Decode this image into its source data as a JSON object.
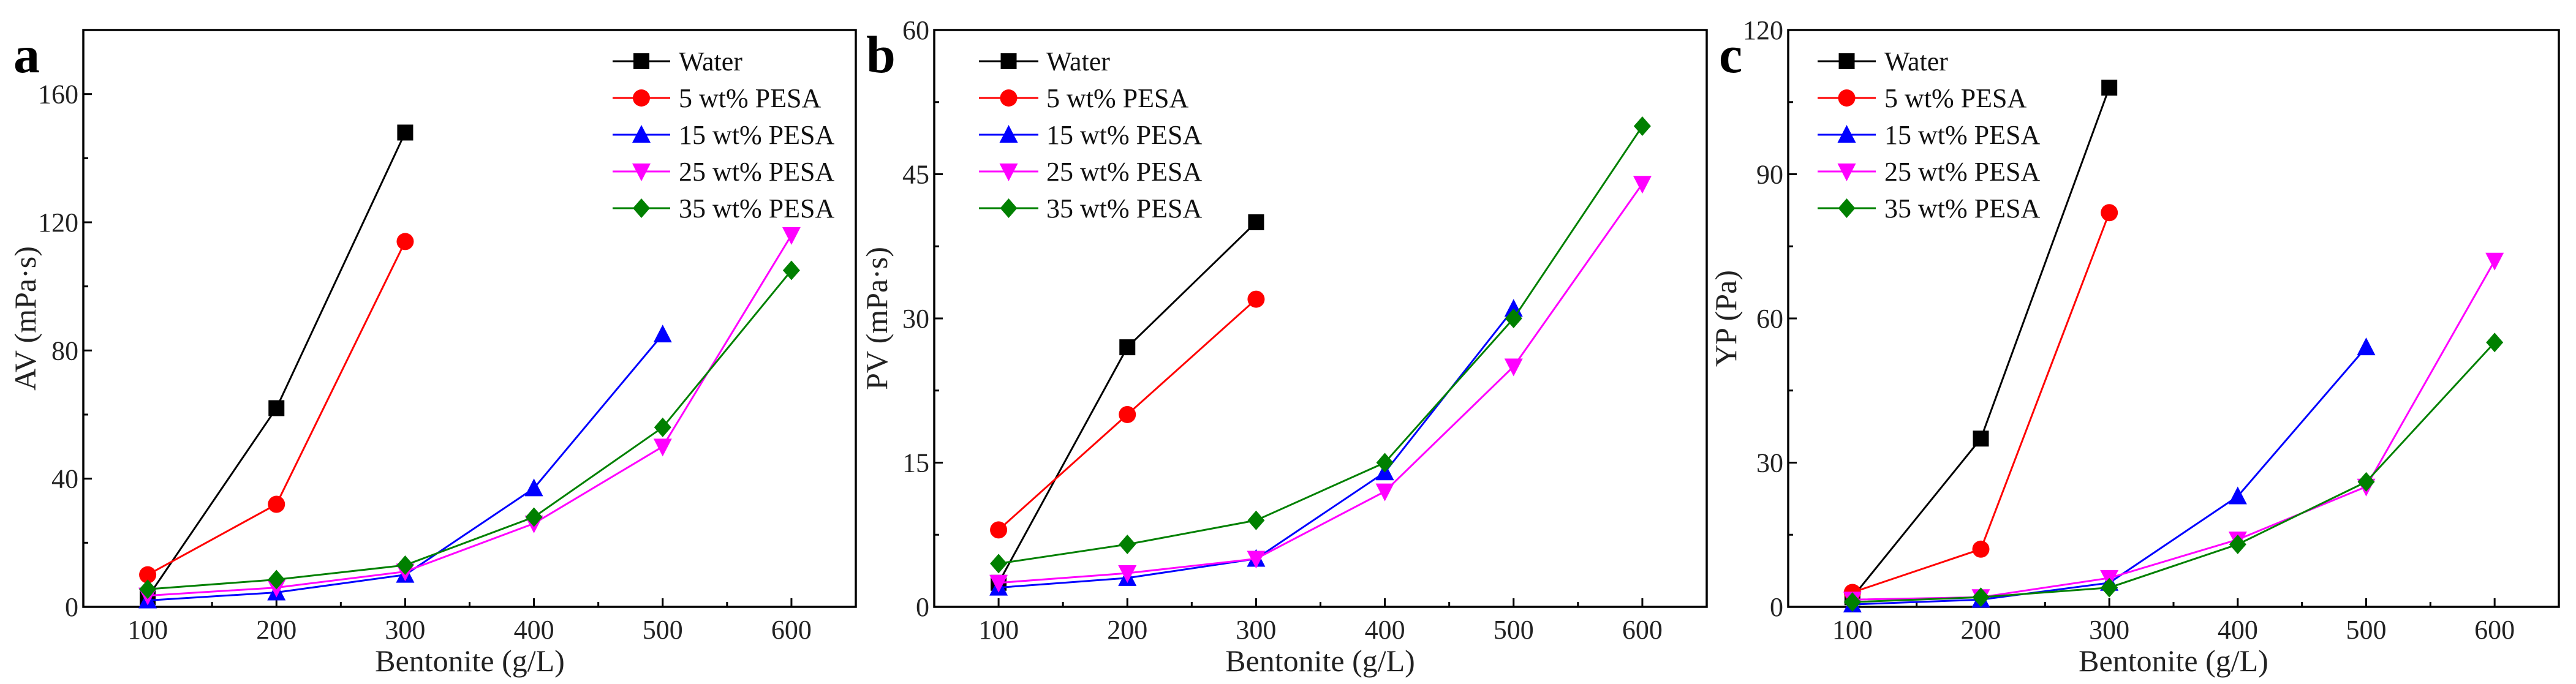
{
  "chart_data": [
    {
      "type": "line",
      "panel_label": "a",
      "xlabel": "Bentonite (g/L)",
      "ylabel": "AV (mPa·s)",
      "xlim": [
        50,
        650
      ],
      "ylim": [
        0,
        180
      ],
      "xticks": [
        100,
        200,
        300,
        400,
        500,
        600
      ],
      "yticks": [
        0,
        40,
        80,
        120,
        160
      ],
      "legend_position": "top-right",
      "series": [
        {
          "name": "Water",
          "color": "#000000",
          "marker": "square",
          "x": [
            100,
            200,
            300
          ],
          "y": [
            3,
            62,
            148
          ]
        },
        {
          "name": "5 wt% PESA",
          "color": "#ff0000",
          "marker": "circle",
          "x": [
            100,
            200,
            300
          ],
          "y": [
            10,
            32,
            114
          ]
        },
        {
          "name": "15 wt% PESA",
          "color": "#0000ff",
          "marker": "triangle-up",
          "x": [
            100,
            200,
            300,
            400,
            500
          ],
          "y": [
            2,
            4.5,
            10,
            37,
            85
          ]
        },
        {
          "name": "25 wt% PESA",
          "color": "#ff00ff",
          "marker": "triangle-down",
          "x": [
            100,
            200,
            300,
            400,
            500,
            600
          ],
          "y": [
            3.5,
            6,
            11,
            26,
            50,
            116
          ]
        },
        {
          "name": "35 wt% PESA",
          "color": "#008000",
          "marker": "diamond",
          "x": [
            100,
            200,
            300,
            400,
            500,
            600
          ],
          "y": [
            5.5,
            8.5,
            13,
            28,
            56,
            105
          ]
        }
      ]
    },
    {
      "type": "line",
      "panel_label": "b",
      "xlabel": "Bentonite (g/L)",
      "ylabel": "PV (mPa·s)",
      "xlim": [
        50,
        650
      ],
      "ylim": [
        0,
        60
      ],
      "xticks": [
        100,
        200,
        300,
        400,
        500,
        600
      ],
      "yticks": [
        0,
        15,
        30,
        45,
        60
      ],
      "legend_position": "top-left",
      "series": [
        {
          "name": "Water",
          "color": "#000000",
          "marker": "square",
          "x": [
            100,
            200,
            300
          ],
          "y": [
            2.5,
            27,
            40
          ]
        },
        {
          "name": "5 wt% PESA",
          "color": "#ff0000",
          "marker": "circle",
          "x": [
            100,
            200,
            300
          ],
          "y": [
            8,
            20,
            32
          ]
        },
        {
          "name": "15 wt% PESA",
          "color": "#0000ff",
          "marker": "triangle-up",
          "x": [
            100,
            200,
            300,
            400,
            500
          ],
          "y": [
            2,
            3,
            5,
            14,
            31
          ]
        },
        {
          "name": "25 wt% PESA",
          "color": "#ff00ff",
          "marker": "triangle-down",
          "x": [
            100,
            200,
            300,
            400,
            500,
            600
          ],
          "y": [
            2.5,
            3.5,
            5,
            12,
            25,
            44
          ]
        },
        {
          "name": "35 wt% PESA",
          "color": "#008000",
          "marker": "diamond",
          "x": [
            100,
            200,
            300,
            400,
            500,
            600
          ],
          "y": [
            4.5,
            6.5,
            9,
            15,
            30,
            50
          ]
        }
      ]
    },
    {
      "type": "line",
      "panel_label": "c",
      "xlabel": "Bentonite (g/L)",
      "ylabel": "YP (Pa)",
      "xlim": [
        50,
        650
      ],
      "ylim": [
        0,
        120
      ],
      "xticks": [
        100,
        200,
        300,
        400,
        500,
        600
      ],
      "yticks": [
        0,
        30,
        60,
        90,
        120
      ],
      "legend_position": "top-left",
      "series": [
        {
          "name": "Water",
          "color": "#000000",
          "marker": "square",
          "x": [
            100,
            200,
            300
          ],
          "y": [
            2,
            35,
            108
          ]
        },
        {
          "name": "5 wt% PESA",
          "color": "#ff0000",
          "marker": "circle",
          "x": [
            100,
            200,
            300
          ],
          "y": [
            3,
            12,
            82
          ]
        },
        {
          "name": "15 wt% PESA",
          "color": "#0000ff",
          "marker": "triangle-up",
          "x": [
            100,
            200,
            300,
            400,
            500
          ],
          "y": [
            0.5,
            1.5,
            5,
            23,
            54
          ]
        },
        {
          "name": "25 wt% PESA",
          "color": "#ff00ff",
          "marker": "triangle-down",
          "x": [
            100,
            200,
            300,
            400,
            500,
            600
          ],
          "y": [
            1.5,
            2,
            6,
            14,
            25,
            72
          ]
        },
        {
          "name": "35 wt% PESA",
          "color": "#008000",
          "marker": "diamond",
          "x": [
            100,
            200,
            300,
            400,
            500,
            600
          ],
          "y": [
            1,
            2,
            4,
            13,
            26,
            55
          ]
        }
      ]
    }
  ]
}
